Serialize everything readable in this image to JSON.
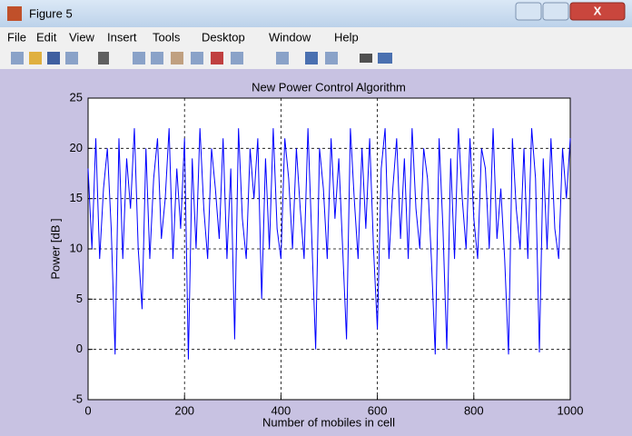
{
  "window": {
    "title": "Figure 5",
    "menu": [
      "File",
      "Edit",
      "View",
      "Insert",
      "Tools",
      "Desktop",
      "Window",
      "Help"
    ]
  },
  "chart_data": {
    "type": "line",
    "title": "New Power Control Algorithm",
    "x_label": "Number of mobiles in cell",
    "y_label": "Power [dB  ]",
    "x": [
      0,
      8,
      16,
      24,
      32,
      40,
      48,
      56,
      64,
      72,
      80,
      88,
      96,
      104,
      112,
      120,
      128,
      136,
      144,
      152,
      160,
      168,
      176,
      184,
      192,
      200,
      208,
      216,
      224,
      232,
      240,
      248,
      256,
      264,
      272,
      280,
      288,
      296,
      304,
      312,
      320,
      328,
      336,
      344,
      352,
      360,
      368,
      376,
      384,
      392,
      400,
      408,
      416,
      424,
      432,
      440,
      448,
      456,
      464,
      472,
      480,
      488,
      496,
      504,
      512,
      520,
      528,
      536,
      544,
      552,
      560,
      568,
      576,
      584,
      592,
      600,
      608,
      616,
      624,
      632,
      640,
      648,
      656,
      664,
      672,
      680,
      688,
      696,
      704,
      712,
      720,
      728,
      736,
      744,
      752,
      760,
      768,
      776,
      784,
      792,
      800,
      808,
      816,
      824,
      832,
      840,
      848,
      856,
      864,
      872,
      880,
      888,
      896,
      904,
      912,
      920,
      928,
      936,
      944,
      952,
      960,
      968,
      976,
      984,
      992,
      1000
    ],
    "series": [
      {
        "name": "Power",
        "color": "#0000ff",
        "values": [
          18,
          10,
          21,
          9,
          16,
          20,
          12,
          -0.5,
          21,
          9,
          19,
          14,
          22,
          10,
          4,
          20,
          9,
          17,
          21,
          11,
          15,
          22,
          9,
          18,
          12,
          21,
          -1,
          19,
          10,
          22,
          14,
          9,
          20,
          16,
          11,
          21,
          9,
          18,
          1,
          22,
          13,
          9,
          20,
          15,
          21,
          5,
          19,
          10,
          22,
          12,
          9,
          21,
          17,
          10,
          20,
          14,
          9,
          22,
          11,
          0,
          20,
          16,
          9,
          21,
          13,
          19,
          10,
          1,
          22,
          15,
          9,
          20,
          12,
          21,
          10,
          2,
          18,
          22,
          9,
          16,
          21,
          11,
          19,
          9,
          22,
          14,
          10,
          20,
          17,
          9,
          -0.5,
          21,
          12,
          0,
          19,
          9,
          22,
          15,
          10,
          21,
          13,
          9,
          20,
          18,
          10,
          22,
          11,
          16,
          9,
          -0.5,
          21,
          14,
          10,
          20,
          9,
          22,
          17,
          -0.3,
          19,
          10,
          21,
          12,
          9,
          20,
          15,
          21
        ]
      }
    ],
    "xlim": [
      0,
      1000
    ],
    "xticks": [
      0,
      200,
      400,
      600,
      800,
      1000
    ],
    "ylim": [
      -5,
      25
    ],
    "yticks": [
      -5,
      0,
      5,
      10,
      15,
      20,
      25
    ],
    "grid": true
  }
}
